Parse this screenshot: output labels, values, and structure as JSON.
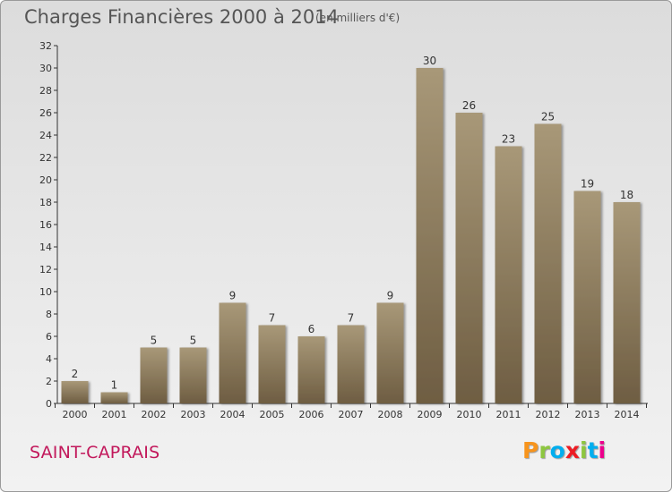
{
  "header": {
    "title": "Charges Financières 2000 à 2014",
    "subtitle": "(en milliers d'€)"
  },
  "footer": {
    "commune": "SAINT-CAPRAIS",
    "logo": "Proxiti",
    "logo_colors": [
      "#f7941d",
      "#8dc63f",
      "#00aeef",
      "#ed1c24",
      "#8dc63f",
      "#00aeef",
      "#ec008c"
    ]
  },
  "colors": {
    "bar_top": "#a89878",
    "bar_bottom": "#6e5d42",
    "axis": "#333333"
  },
  "chart_data": {
    "type": "bar",
    "title": "Charges Financières 2000 à 2014",
    "subtitle": "(en milliers d'€)",
    "categories": [
      "2000",
      "2001",
      "2002",
      "2003",
      "2004",
      "2005",
      "2006",
      "2007",
      "2008",
      "2009",
      "2010",
      "2011",
      "2012",
      "2013",
      "2014"
    ],
    "values": [
      2,
      1,
      5,
      5,
      9,
      7,
      6,
      7,
      9,
      30,
      26,
      23,
      25,
      19,
      18
    ],
    "data_labels": [
      "2",
      "1",
      "5",
      "5",
      "9",
      "7",
      "6",
      "7",
      "9",
      "30",
      "26",
      "23",
      "25",
      "19",
      "18"
    ],
    "y_ticks": [
      "0",
      "2",
      "4",
      "6",
      "8",
      "10",
      "12",
      "14",
      "16",
      "18",
      "20",
      "22",
      "24",
      "26",
      "28",
      "30",
      "32"
    ],
    "ylim": [
      0,
      32
    ],
    "grid": false,
    "legend": "none"
  }
}
